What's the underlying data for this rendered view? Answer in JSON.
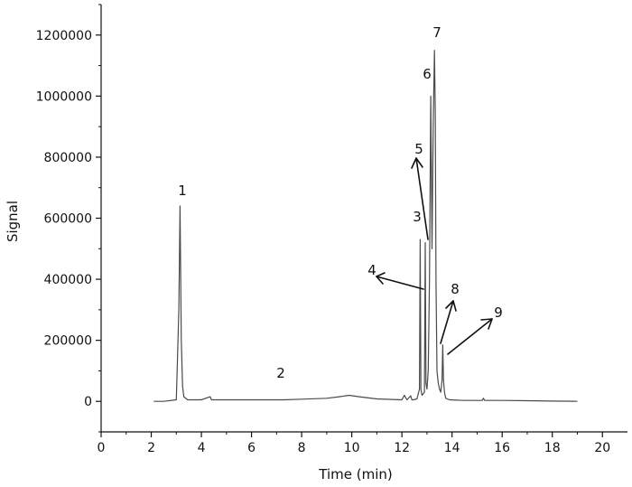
{
  "chart_data": {
    "type": "line",
    "title": "",
    "xlabel": "Time (min)",
    "ylabel": "Signal",
    "xlim": [
      0,
      21
    ],
    "ylim": [
      -100000,
      1300000
    ],
    "xticks": [
      "0",
      "2",
      "4",
      "6",
      "8",
      "10",
      "12",
      "14",
      "16",
      "18",
      "20"
    ],
    "yticks": [
      "0",
      "200000",
      "400000",
      "600000",
      "800000",
      "1000000",
      "1200000"
    ],
    "grid": false,
    "legend": "none",
    "line_color": "#4a4a4a",
    "series": [
      {
        "x": [
          2.1,
          2.5,
          3.0,
          3.1,
          3.15,
          3.2,
          3.25,
          3.3,
          3.45,
          4.0,
          4.35,
          4.4,
          4.45,
          5.5,
          6.7,
          7.0,
          7.3,
          8.0,
          9.0,
          9.5,
          9.9,
          10.3,
          11.0,
          12.0,
          12.1,
          12.2,
          12.35,
          12.4,
          12.45,
          12.6,
          12.7,
          12.73,
          12.76,
          12.8,
          12.9,
          12.93,
          12.96,
          13.0,
          13.05,
          13.1,
          13.15,
          13.2,
          13.25,
          13.3,
          13.33,
          13.36,
          13.4,
          13.45,
          13.5,
          13.55,
          13.6,
          13.63,
          13.66,
          13.7,
          13.75,
          13.9,
          14.5,
          15.2,
          15.25,
          15.3,
          16.0,
          17.0,
          18.0,
          19.0
        ],
        "y": [
          0,
          0,
          5000,
          300000,
          640000,
          200000,
          50000,
          15000,
          5000,
          5000,
          15000,
          5000,
          5000,
          5000,
          5000,
          5000,
          5000,
          7000,
          10000,
          15000,
          20000,
          15000,
          8000,
          5000,
          20000,
          5000,
          18000,
          5000,
          5000,
          8000,
          40000,
          530000,
          40000,
          20000,
          30000,
          520000,
          60000,
          40000,
          100000,
          400000,
          1000000,
          500000,
          900000,
          1150000,
          950000,
          400000,
          100000,
          60000,
          40000,
          30000,
          70000,
          185000,
          70000,
          30000,
          10000,
          5000,
          3000,
          3000,
          10000,
          3000,
          3000,
          2000,
          1000,
          0
        ]
      }
    ],
    "annotations": [
      "1",
      "2",
      "3",
      "4",
      "5",
      "6",
      "7",
      "8",
      "9"
    ]
  }
}
